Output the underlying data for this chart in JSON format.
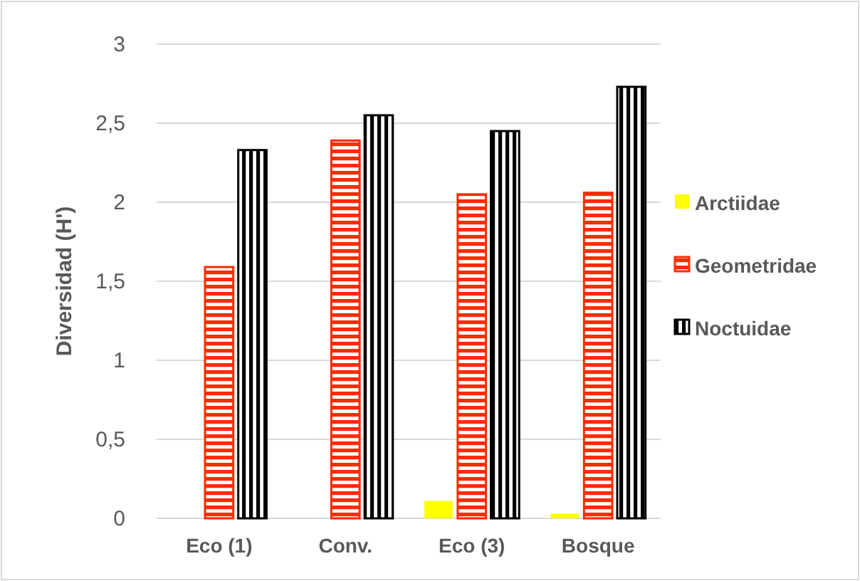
{
  "chart_data": {
    "type": "bar",
    "ylabel": "Diversidad (H')",
    "categories": [
      "Eco (1)",
      "Conv.",
      "Eco (3)",
      "Bosque"
    ],
    "series": [
      {
        "name": "Arctiidae",
        "color": "#ffff00",
        "values": [
          0,
          0,
          0.11,
          0.03
        ]
      },
      {
        "name": "Geometridae",
        "color": "#ff2a00",
        "values": [
          1.59,
          2.39,
          2.05,
          2.06
        ]
      },
      {
        "name": "Noctuidae",
        "color": "#000000",
        "values": [
          2.33,
          2.55,
          2.45,
          2.73
        ]
      }
    ],
    "ylim": [
      0,
      3
    ],
    "yticks": [
      0,
      {
        "value": 0.5,
        "label": "0,5"
      },
      1,
      {
        "value": 1.5,
        "label": "1,5"
      },
      2,
      {
        "value": 2.5,
        "label": "2,5"
      },
      3
    ],
    "grid": "y",
    "legend": "right"
  }
}
